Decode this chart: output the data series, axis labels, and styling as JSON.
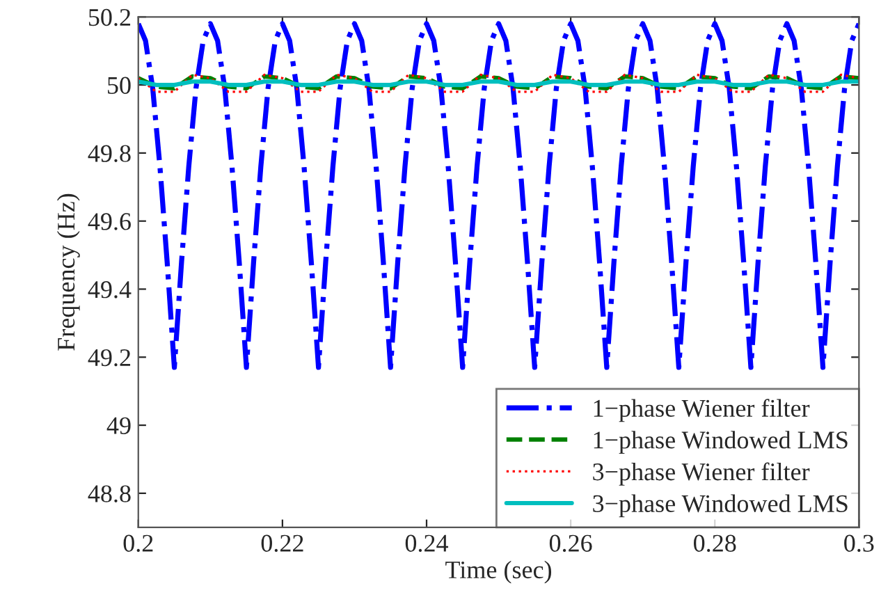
{
  "chart_data": {
    "type": "line",
    "xlabel": "Time (sec)",
    "ylabel": "Frequency (Hz)",
    "xlim": [
      0.2,
      0.3
    ],
    "ylim": [
      48.7,
      50.2
    ],
    "xticks": [
      0.2,
      0.22,
      0.24,
      0.26,
      0.28,
      0.3
    ],
    "yticks": [
      48.8,
      49,
      49.2,
      49.4,
      49.6,
      49.8,
      50,
      50.2
    ],
    "grid": false,
    "legend": "bottom right",
    "series": [
      {
        "name": "1−phase Wiener filter",
        "color": "#0000ff",
        "line_style": "dashdot",
        "x": [
          0.2,
          0.201,
          0.202,
          0.203,
          0.204,
          0.205,
          0.206,
          0.207,
          0.208,
          0.209,
          0.21,
          0.211,
          0.212,
          0.213,
          0.214,
          0.215,
          0.216,
          0.217,
          0.218,
          0.219,
          0.22,
          0.221,
          0.222,
          0.223,
          0.224,
          0.225,
          0.226,
          0.227,
          0.228,
          0.229,
          0.23,
          0.231,
          0.232,
          0.233,
          0.234,
          0.235,
          0.236,
          0.237,
          0.238,
          0.239,
          0.24,
          0.241,
          0.242,
          0.243,
          0.244,
          0.245,
          0.246,
          0.247,
          0.248,
          0.249,
          0.25,
          0.251,
          0.252,
          0.253,
          0.254,
          0.255,
          0.256,
          0.257,
          0.258,
          0.259,
          0.26,
          0.261,
          0.262,
          0.263,
          0.264,
          0.265,
          0.266,
          0.267,
          0.268,
          0.269,
          0.27,
          0.271,
          0.272,
          0.273,
          0.274,
          0.275,
          0.276,
          0.277,
          0.278,
          0.279,
          0.28,
          0.281,
          0.282,
          0.283,
          0.284,
          0.285,
          0.286,
          0.287,
          0.288,
          0.289,
          0.29,
          0.291,
          0.292,
          0.293,
          0.294,
          0.295,
          0.296,
          0.297,
          0.298,
          0.299,
          0.3
        ],
        "values": [
          50.18,
          50.13,
          49.99,
          49.76,
          49.48,
          49.17,
          49.48,
          49.76,
          49.99,
          50.13,
          50.18,
          50.13,
          49.99,
          49.76,
          49.48,
          49.17,
          49.48,
          49.76,
          49.99,
          50.13,
          50.18,
          50.13,
          49.99,
          49.76,
          49.48,
          49.17,
          49.48,
          49.76,
          49.99,
          50.13,
          50.18,
          50.13,
          49.99,
          49.76,
          49.48,
          49.17,
          49.48,
          49.76,
          49.99,
          50.13,
          50.18,
          50.13,
          49.99,
          49.76,
          49.48,
          49.17,
          49.48,
          49.76,
          49.99,
          50.13,
          50.18,
          50.13,
          49.99,
          49.76,
          49.48,
          49.17,
          49.48,
          49.76,
          49.99,
          50.13,
          50.18,
          50.13,
          49.99,
          49.76,
          49.48,
          49.17,
          49.48,
          49.76,
          49.99,
          50.13,
          50.18,
          50.13,
          49.99,
          49.76,
          49.48,
          49.17,
          49.48,
          49.76,
          49.99,
          50.13,
          50.18,
          50.13,
          49.99,
          49.76,
          49.48,
          49.17,
          49.48,
          49.76,
          49.99,
          50.13,
          50.18,
          50.13,
          49.99,
          49.76,
          49.48,
          49.17,
          49.48,
          49.76,
          49.99,
          50.13,
          50.18
        ]
      },
      {
        "name": "1−phase Windowed LMS",
        "color": "#008000",
        "line_style": "dashed",
        "x": [
          0.2,
          0.2025,
          0.205,
          0.2075,
          0.21,
          0.2125,
          0.215,
          0.2175,
          0.22,
          0.2225,
          0.225,
          0.2275,
          0.23,
          0.2325,
          0.235,
          0.2375,
          0.24,
          0.2425,
          0.245,
          0.2475,
          0.25,
          0.2525,
          0.255,
          0.2575,
          0.26,
          0.2625,
          0.265,
          0.2675,
          0.27,
          0.2725,
          0.275,
          0.2775,
          0.28,
          0.2825,
          0.285,
          0.2875,
          0.29,
          0.2925,
          0.295,
          0.2975,
          0.3
        ],
        "values": [
          50.02,
          49.995,
          49.99,
          50.025,
          50.02,
          49.995,
          49.99,
          50.025,
          50.02,
          49.995,
          49.99,
          50.025,
          50.02,
          49.995,
          49.99,
          50.025,
          50.02,
          49.995,
          49.99,
          50.025,
          50.02,
          49.995,
          49.99,
          50.025,
          50.02,
          49.995,
          49.99,
          50.025,
          50.02,
          49.995,
          49.99,
          50.025,
          50.02,
          49.995,
          49.99,
          50.025,
          50.02,
          49.995,
          49.99,
          50.025,
          50.02
        ]
      },
      {
        "name": "3−phase Wiener filter",
        "color": "#ff0000",
        "line_style": "dotted",
        "x": [
          0.2,
          0.2025,
          0.205,
          0.2075,
          0.21,
          0.2125,
          0.215,
          0.2175,
          0.22,
          0.2225,
          0.225,
          0.2275,
          0.23,
          0.2325,
          0.235,
          0.2375,
          0.24,
          0.2425,
          0.245,
          0.2475,
          0.25,
          0.2525,
          0.255,
          0.2575,
          0.26,
          0.2625,
          0.265,
          0.2675,
          0.27,
          0.2725,
          0.275,
          0.2775,
          0.28,
          0.2825,
          0.285,
          0.2875,
          0.29,
          0.2925,
          0.295,
          0.2975,
          0.3
        ],
        "values": [
          50.02,
          49.98,
          49.98,
          50.03,
          50.02,
          49.98,
          49.98,
          50.03,
          50.02,
          49.98,
          49.98,
          50.03,
          50.02,
          49.98,
          49.98,
          50.03,
          50.02,
          49.98,
          49.98,
          50.03,
          50.02,
          49.98,
          49.98,
          50.03,
          50.02,
          49.98,
          49.98,
          50.03,
          50.02,
          49.98,
          49.98,
          50.03,
          50.02,
          49.98,
          49.98,
          50.03,
          50.02,
          49.98,
          49.98,
          50.03,
          50.02
        ]
      },
      {
        "name": "3−phase Windowed LMS",
        "color": "#00bfbf",
        "line_style": "solid",
        "x": [
          0.2,
          0.2025,
          0.205,
          0.2075,
          0.21,
          0.2125,
          0.215,
          0.2175,
          0.22,
          0.2225,
          0.225,
          0.2275,
          0.23,
          0.2325,
          0.235,
          0.2375,
          0.24,
          0.2425,
          0.245,
          0.2475,
          0.25,
          0.2525,
          0.255,
          0.2575,
          0.26,
          0.2625,
          0.265,
          0.2675,
          0.27,
          0.2725,
          0.275,
          0.2775,
          0.28,
          0.2825,
          0.285,
          0.2875,
          0.29,
          0.2925,
          0.295,
          0.2975,
          0.3
        ],
        "values": [
          50.01,
          50.0,
          50.0,
          50.01,
          50.01,
          50.0,
          50.0,
          50.01,
          50.01,
          50.0,
          50.0,
          50.01,
          50.01,
          50.0,
          50.0,
          50.01,
          50.01,
          50.0,
          50.0,
          50.01,
          50.01,
          50.0,
          50.0,
          50.01,
          50.01,
          50.0,
          50.0,
          50.01,
          50.01,
          50.0,
          50.0,
          50.01,
          50.01,
          50.0,
          50.0,
          50.01,
          50.01,
          50.0,
          50.0,
          50.01,
          50.01
        ]
      }
    ]
  }
}
